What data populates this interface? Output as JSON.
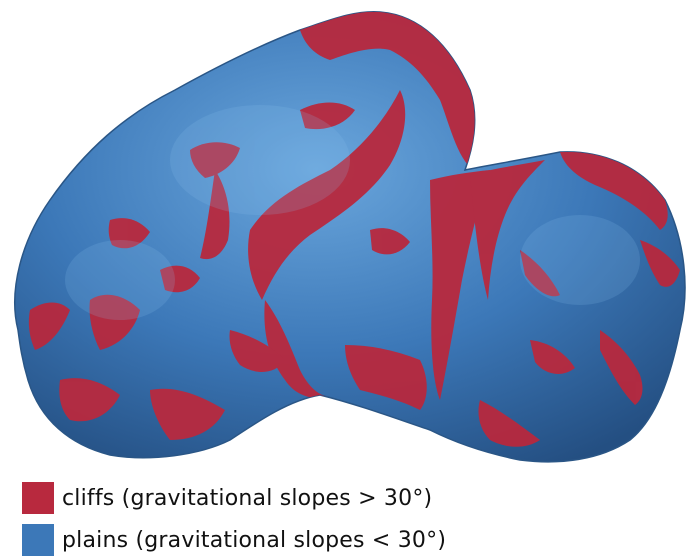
{
  "colors": {
    "cliffs": "#b8293e",
    "plains": "#3c78b8",
    "plains_highlight": "#5d9ad3",
    "plains_shadow": "#2a5a90"
  },
  "legend": {
    "items": [
      {
        "key": "cliffs",
        "label": "cliffs (gravitational slopes > 30°)"
      },
      {
        "key": "plains",
        "label": "plains (gravitational slopes < 30°)"
      }
    ]
  }
}
